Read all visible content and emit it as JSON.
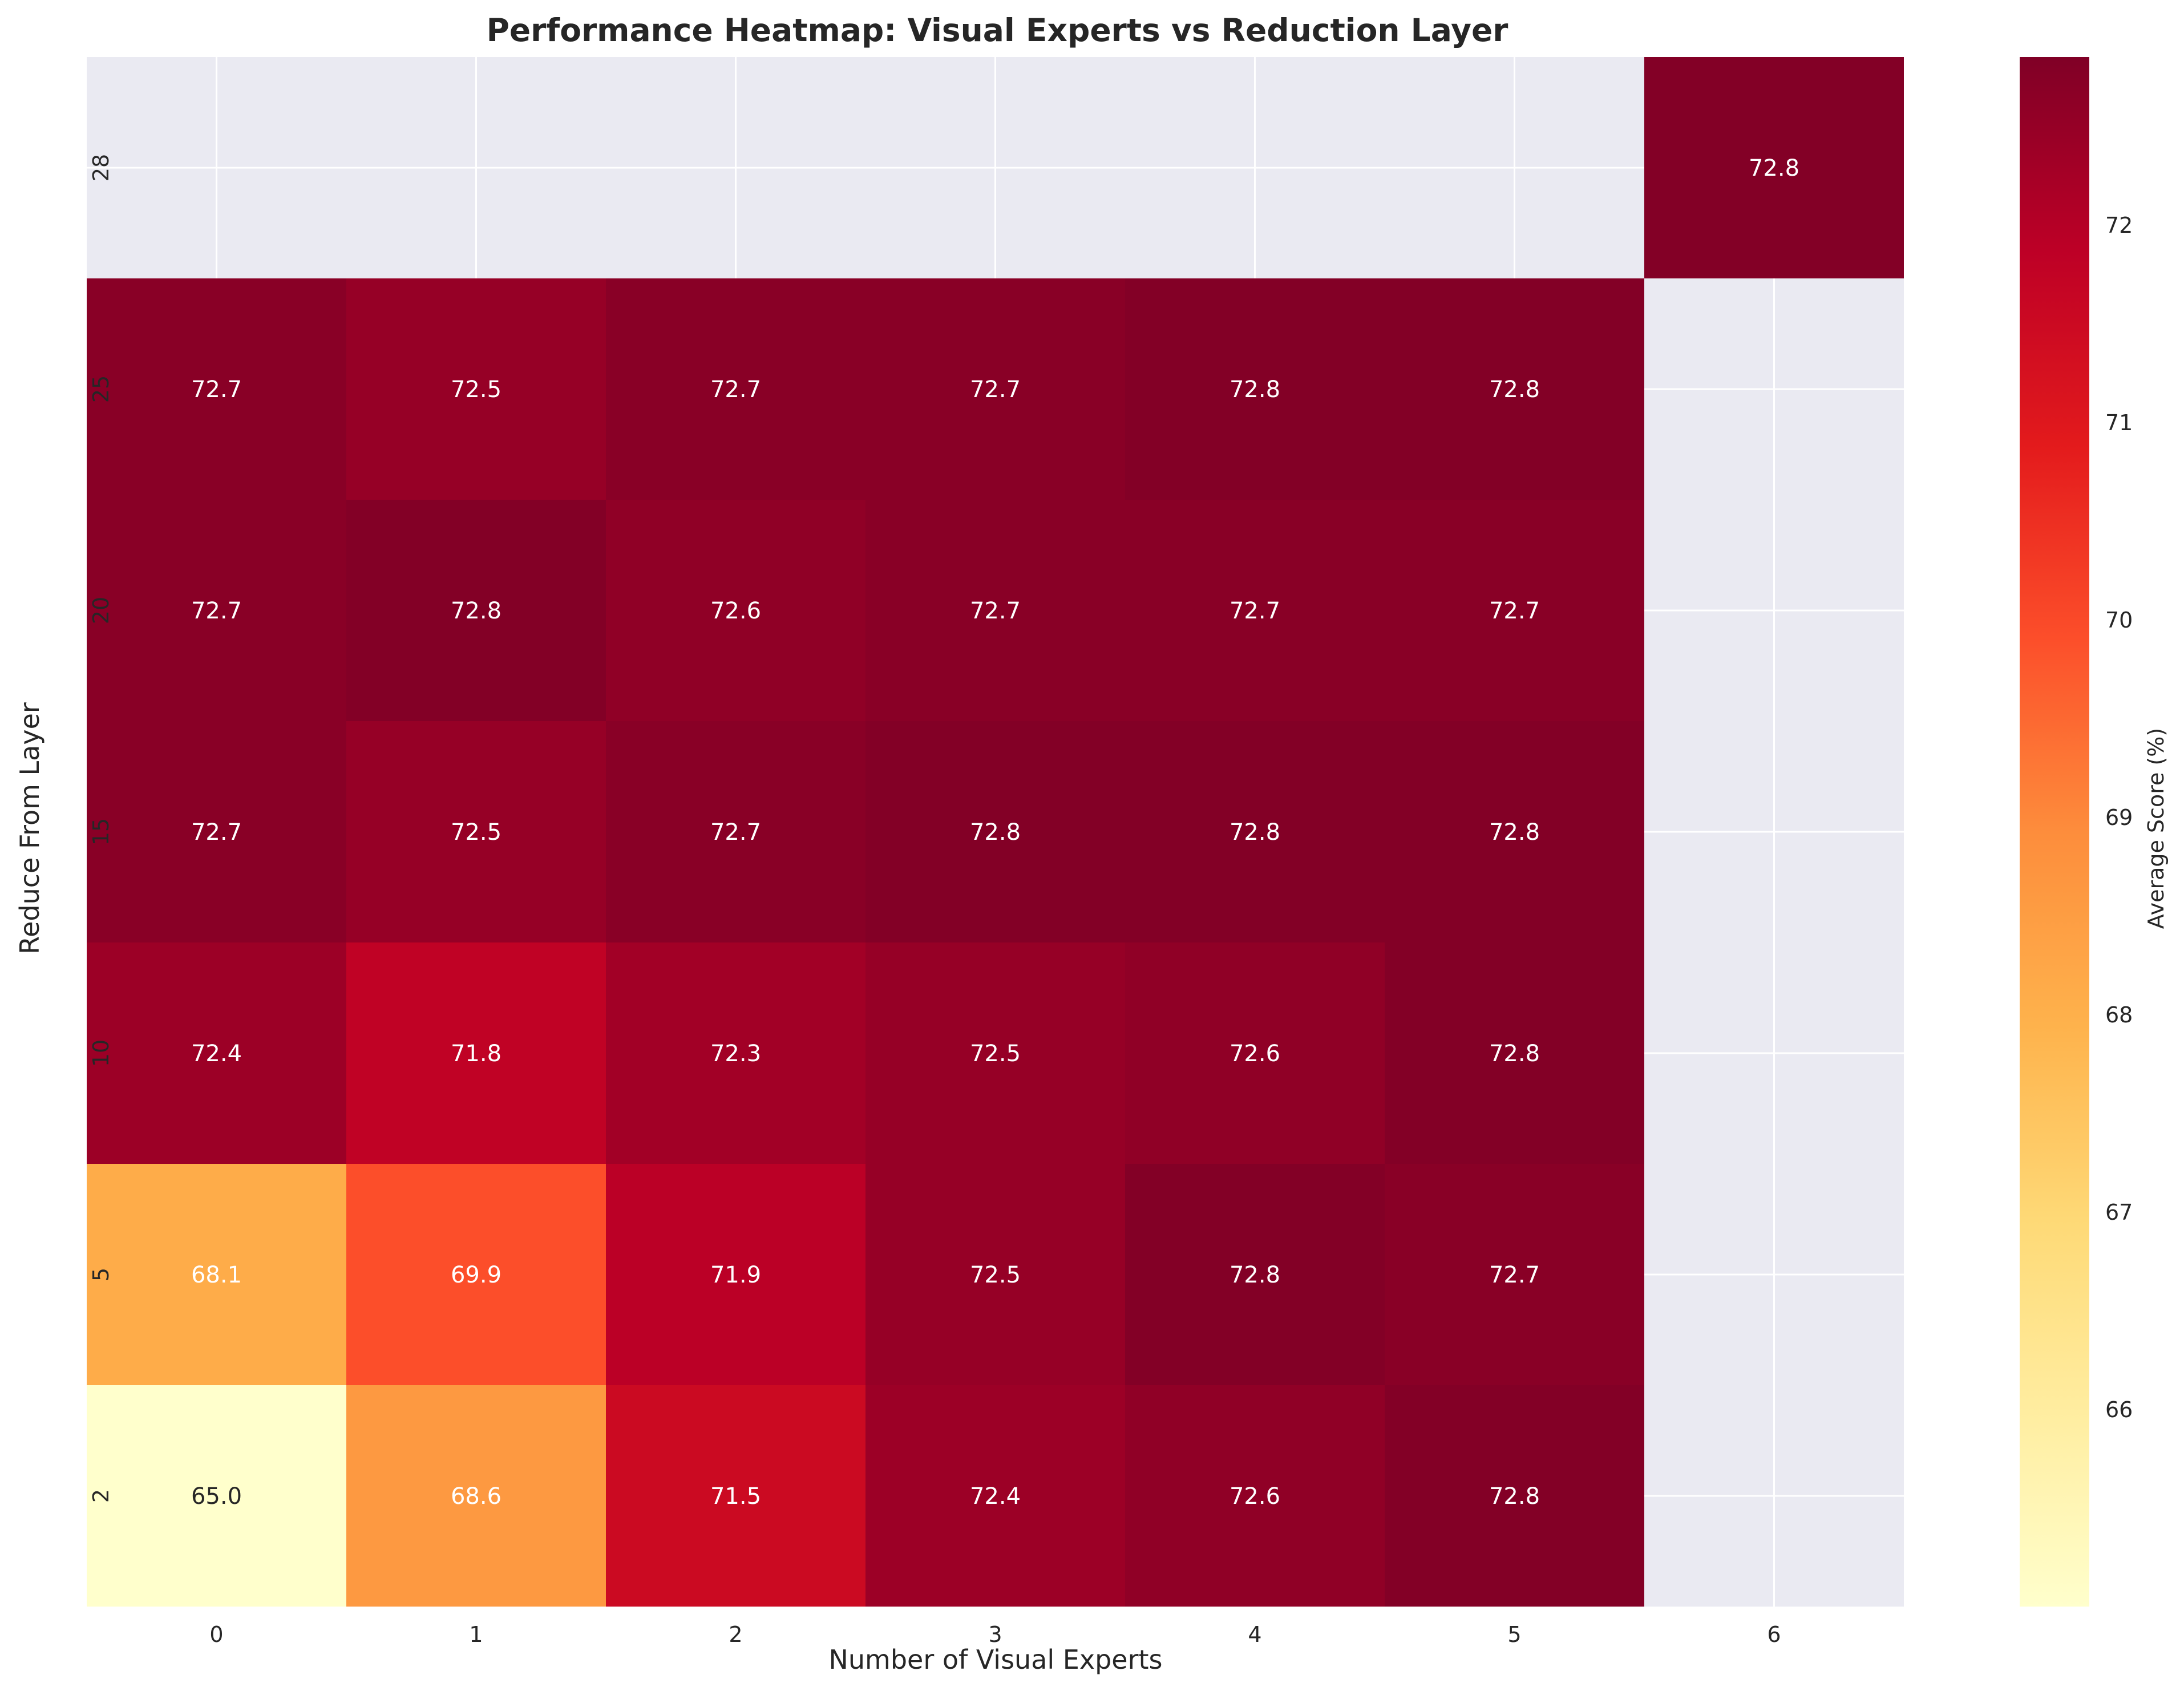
{
  "chart_data": {
    "type": "heatmap",
    "title": "Performance Heatmap: Visual Experts vs Reduction Layer",
    "xlabel": "Number of Visual Experts",
    "ylabel": "Reduce From Layer",
    "x_categories": [
      "0",
      "1",
      "2",
      "3",
      "4",
      "5",
      "6"
    ],
    "y_categories": [
      "28",
      "25",
      "20",
      "15",
      "10",
      "5",
      "2"
    ],
    "values": [
      [
        null,
        null,
        null,
        null,
        null,
        null,
        72.8
      ],
      [
        72.7,
        72.5,
        72.7,
        72.7,
        72.8,
        72.8,
        null
      ],
      [
        72.7,
        72.8,
        72.6,
        72.7,
        72.7,
        72.7,
        null
      ],
      [
        72.7,
        72.5,
        72.7,
        72.8,
        72.8,
        72.8,
        null
      ],
      [
        72.4,
        71.8,
        72.3,
        72.5,
        72.6,
        72.8,
        null
      ],
      [
        68.1,
        69.9,
        71.9,
        72.5,
        72.8,
        72.7,
        null
      ],
      [
        65.0,
        68.6,
        71.5,
        72.4,
        72.6,
        72.8,
        null
      ]
    ],
    "colorbar": {
      "label": "Average Score (%)",
      "vmin": 65.0,
      "vmax": 72.85,
      "ticks": [
        66,
        67,
        68,
        69,
        70,
        71,
        72
      ],
      "colormap": "YlOrRd"
    },
    "missing_color": "#eaeaf2",
    "grid": true
  }
}
